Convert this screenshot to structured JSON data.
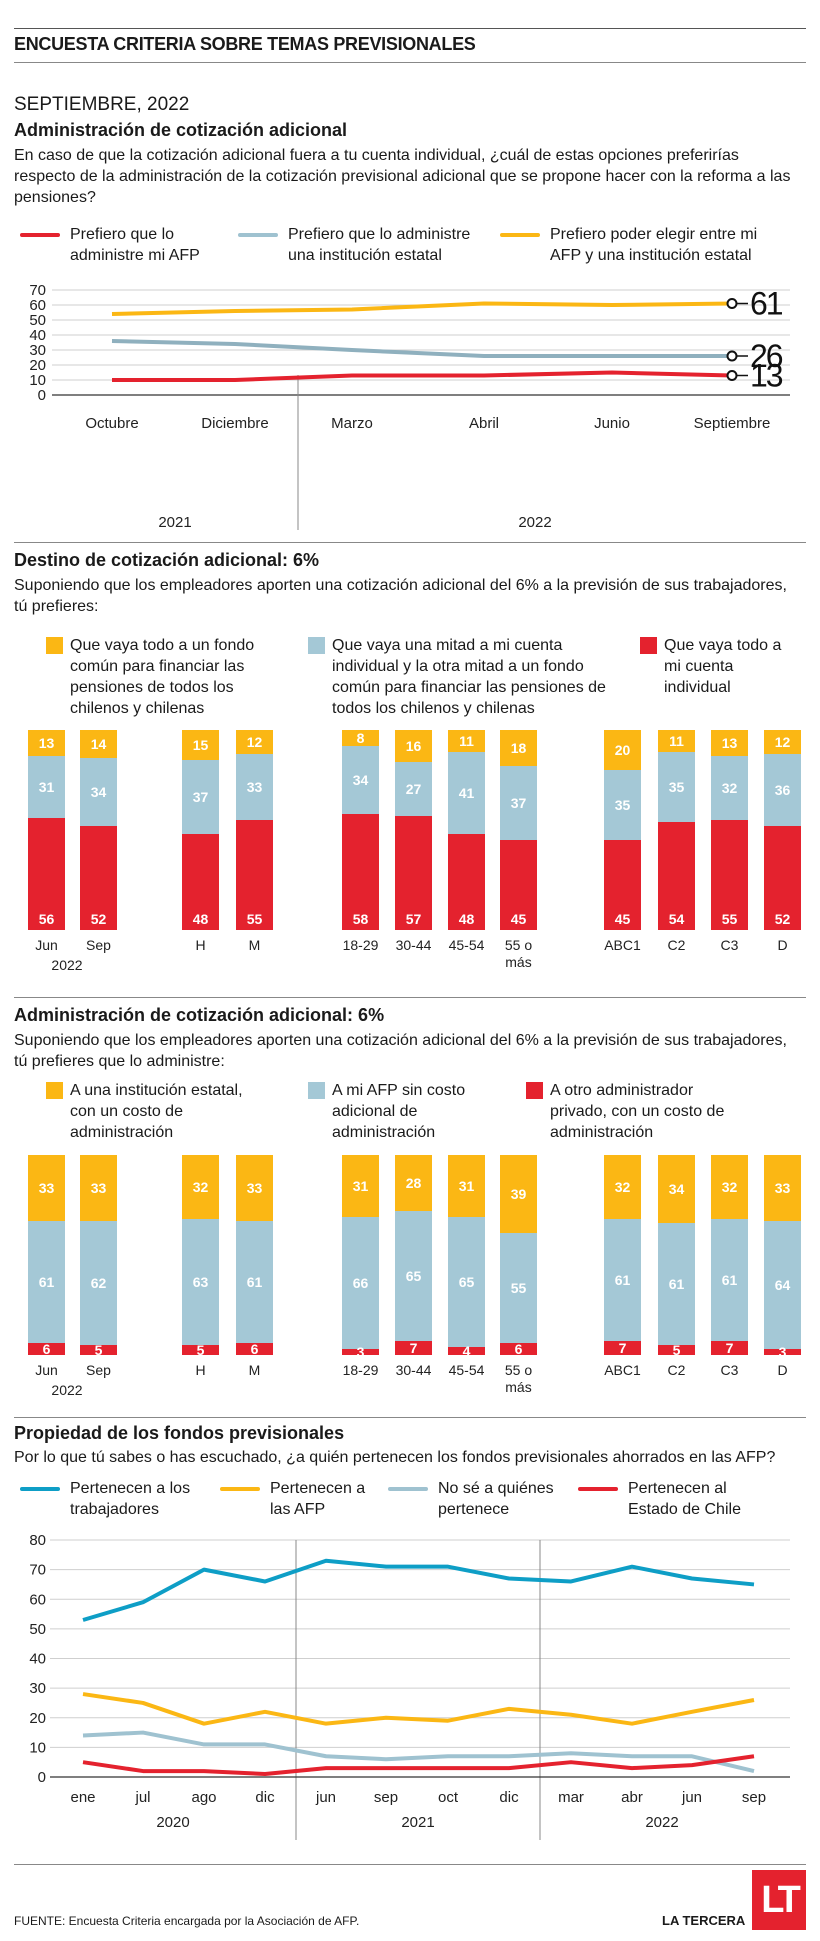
{
  "header": {
    "title": "ENCUESTA CRITERIA SOBRE TEMAS PREVISIONALES",
    "date": "SEPTIEMBRE, 2022"
  },
  "colors": {
    "red": "#e4222e",
    "blue": "#a4c8d6",
    "yellow": "#fbb714",
    "teal": "#0e9ec6",
    "grey_blue": "#9fc2d0",
    "grey_blue_line": "#8fb0be"
  },
  "sections": {
    "s1": {
      "title": "Administración de cotización adicional",
      "question": "En caso de que la cotización adicional fuera a tu cuenta individual, ¿cuál de estas opciones preferirías respecto de la administración de la cotización previsional adicional que se propone hacer con la reforma a las pensiones?",
      "legend": [
        "Prefiero que lo administre mi AFP",
        "Prefiero que lo administre una institución estatal",
        "Prefiero poder elegir entre mi AFP y una institución estatal"
      ]
    },
    "s2": {
      "title": "Destino de cotización adicional: 6%",
      "question": "Suponiendo que los empleadores aporten una cotización adicional del 6% a la previsión de sus trabajadores, tú prefieres:",
      "legend": [
        "Que vaya todo a un fondo común para financiar las pensiones de todos los chilenos y chilenas",
        "Que vaya una mitad a mi cuenta individual y la otra mitad a un fondo común para financiar las pensiones de todos los chilenos y chilenas",
        "Que vaya todo a mi cuenta individual"
      ]
    },
    "s3": {
      "title": "Administración de cotización adicional: 6%",
      "question": "Suponiendo que los empleadores aporten una cotización adicional del 6% a la previsión de sus trabajadores, tú prefieres que lo administre:",
      "legend": [
        "A una institución estatal, con un costo de administración",
        "A mi AFP sin costo adicional de administración",
        "A otro administrador privado, con un costo de administración"
      ]
    },
    "s4": {
      "title": "Propiedad de los fondos previsionales",
      "question": "Por lo que tú sabes o has escuchado, ¿a quién pertenecen los fondos previsionales ahorrados en las AFP?",
      "legend": [
        "Pertenecen a los trabajadores",
        "Pertenecen a las AFP",
        "No sé a quiénes pertenece",
        "Pertenecen al Estado de Chile"
      ]
    }
  },
  "chart_data": [
    {
      "type": "line",
      "x": [
        "Octubre",
        "Diciembre",
        "Marzo",
        "Abril",
        "Junio",
        "Septiembre"
      ],
      "year_labels": [
        "2021",
        "2022"
      ],
      "ylim": [
        0,
        70
      ],
      "yticks": [
        0,
        10,
        20,
        30,
        40,
        50,
        60,
        70
      ],
      "grid": true,
      "series": [
        {
          "name": "Prefiero que lo administre mi AFP",
          "values": [
            10,
            10,
            13,
            13,
            15,
            13
          ],
          "end_label": "13"
        },
        {
          "name": "Prefiero que lo administre una institución estatal",
          "values": [
            36,
            34,
            30,
            26,
            26,
            26
          ],
          "end_label": "26"
        },
        {
          "name": "Prefiero poder elegir entre mi AFP y una institución estatal",
          "values": [
            54,
            56,
            57,
            61,
            60,
            61
          ],
          "end_label": "61"
        }
      ]
    },
    {
      "type": "bar",
      "stacked": true,
      "categories": [
        "Jun",
        "Sep",
        "H",
        "M",
        "18-29",
        "30-44",
        "45-54",
        "55 o más",
        "ABC1",
        "C2",
        "C3",
        "D"
      ],
      "group_label": "2022",
      "series": [
        {
          "name": "Que vaya todo a un fondo común para financiar las pensiones de todos los chilenos y chilenas",
          "values": [
            13,
            14,
            15,
            12,
            8,
            16,
            11,
            18,
            20,
            11,
            13,
            12
          ]
        },
        {
          "name": "Que vaya una mitad a mi cuenta individual y la otra mitad a un fondo común para financiar las pensiones de todos los chilenos y chilenas",
          "values": [
            31,
            34,
            37,
            33,
            34,
            27,
            41,
            37,
            35,
            35,
            32,
            36
          ]
        },
        {
          "name": "Que vaya todo a mi cuenta individual",
          "values": [
            56,
            52,
            48,
            55,
            58,
            57,
            48,
            45,
            45,
            54,
            55,
            52
          ]
        }
      ]
    },
    {
      "type": "bar",
      "stacked": true,
      "categories": [
        "Jun",
        "Sep",
        "H",
        "M",
        "18-29",
        "30-44",
        "45-54",
        "55 o más",
        "ABC1",
        "C2",
        "C3",
        "D"
      ],
      "group_label": "2022",
      "series": [
        {
          "name": "A una institución estatal, con un costo de administración",
          "values": [
            33,
            33,
            32,
            33,
            31,
            28,
            31,
            39,
            32,
            34,
            32,
            33
          ]
        },
        {
          "name": "A mi AFP sin costo adicional de administración",
          "values": [
            61,
            62,
            63,
            61,
            66,
            65,
            65,
            55,
            61,
            61,
            61,
            64
          ]
        },
        {
          "name": "A otro administrador privado, con un costo de administración",
          "values": [
            6,
            5,
            5,
            6,
            3,
            7,
            4,
            6,
            7,
            5,
            7,
            3
          ]
        }
      ]
    },
    {
      "type": "line",
      "x": [
        "ene",
        "jul",
        "ago",
        "dic",
        "jun",
        "sep",
        "oct",
        "dic",
        "mar",
        "abr",
        "jun",
        "sep"
      ],
      "year_labels": [
        "2020",
        "2021",
        "2022"
      ],
      "ylim": [
        0,
        80
      ],
      "yticks": [
        0,
        10,
        20,
        30,
        40,
        50,
        60,
        70,
        80
      ],
      "grid": true,
      "series": [
        {
          "name": "Pertenecen a los trabajadores",
          "values": [
            53,
            59,
            70,
            66,
            73,
            71,
            71,
            67,
            66,
            71,
            67,
            65
          ]
        },
        {
          "name": "Pertenecen a las AFP",
          "values": [
            28,
            25,
            18,
            22,
            18,
            20,
            19,
            23,
            21,
            18,
            22,
            26
          ]
        },
        {
          "name": "No sé a quiénes pertenece",
          "values": [
            14,
            15,
            11,
            11,
            7,
            6,
            7,
            7,
            8,
            7,
            7,
            2
          ]
        },
        {
          "name": "Pertenecen al Estado de Chile",
          "values": [
            5,
            2,
            2,
            1,
            3,
            3,
            3,
            3,
            5,
            3,
            4,
            7
          ]
        }
      ]
    }
  ],
  "footer": {
    "source": "FUENTE: Encuesta Criteria encargada por la Asociación de AFP.",
    "brand": "LA TERCERA",
    "logo": "LT"
  }
}
